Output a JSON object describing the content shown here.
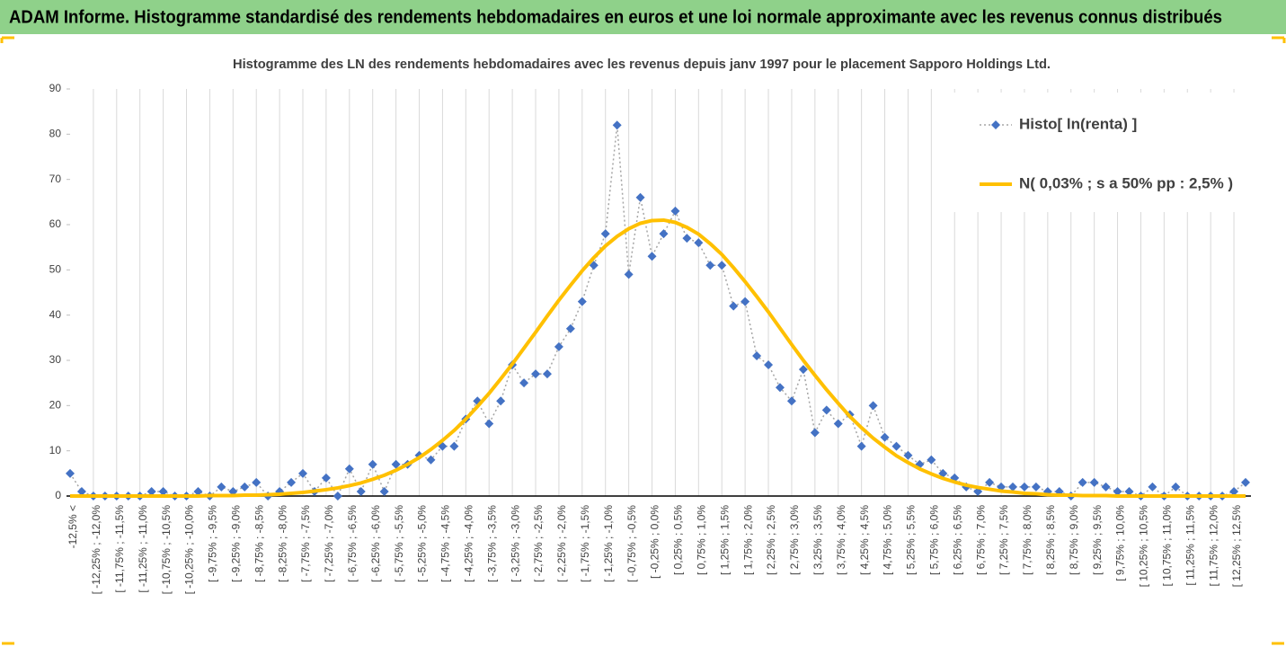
{
  "header": {
    "title": "ADAM Informe. Histogramme standardisé des rendements hebdomadaires en euros et une loi normale approximante avec les revenus connus distribués"
  },
  "chart_data": {
    "type": "line",
    "title": "Histogramme  des LN des rendements hebdomadaires avec les revenus depuis janv 1997 pour le placement Sapporo Holdings Ltd.",
    "categories": [
      "-12,5% <",
      null,
      "[ -12,25% ; -12,0%",
      null,
      "[ -11,75% ; -11,5%",
      null,
      "[ -11,25% ; -11,0%",
      null,
      "[ -10,75% ; -10,5%",
      null,
      "[ -10,25% ; -10,0%",
      null,
      "[ -9,75% ; -9,5%",
      null,
      "[ -9,25% ; -9,0%",
      null,
      "[ -8,75% ; -8,5%",
      null,
      "[ -8,25% ; -8,0%",
      null,
      "[ -7,75% ; -7,5%",
      null,
      "[ -7,25% ; -7,0%",
      null,
      "[ -6,75% ; -6,5%",
      null,
      "[ -6,25% ; -6,0%",
      null,
      "[ -5,75% ; -5,5%",
      null,
      "[ -5,25% ; -5,0%",
      null,
      "[ -4,75% ; -4,5%",
      null,
      "[ -4,25% ; -4,0%",
      null,
      "[ -3,75% ; -3,5%",
      null,
      "[ -3,25% ; -3,0%",
      null,
      "[ -2,75% ; -2,5%",
      null,
      "[ -2,25% ; -2,0%",
      null,
      "[ -1,75% ; -1,5%",
      null,
      "[ -1,25% ; -1,0%",
      null,
      "[ -0,75% ; -0,5%",
      null,
      "[ -0,25% ; 0,0%",
      null,
      "[ 0,25% ; 0,5%",
      null,
      "[ 0,75% ; 1,0%",
      null,
      "[ 1,25% ; 1,5%",
      null,
      "[ 1,75% ; 2,0%",
      null,
      "[ 2,25% ; 2,5%",
      null,
      "[ 2,75% ; 3,0%",
      null,
      "[ 3,25% ; 3,5%",
      null,
      "[ 3,75% ; 4,0%",
      null,
      "[ 4,25% ; 4,5%",
      null,
      "[ 4,75% ; 5,0%",
      null,
      "[ 5,25% ; 5,5%",
      null,
      "[ 5,75% ; 6,0%",
      null,
      "[ 6,25% ; 6,5%",
      null,
      "[ 6,75% ; 7,0%",
      null,
      "[ 7,25% ; 7,5%",
      null,
      "[ 7,75% ; 8,0%",
      null,
      "[ 8,25% ; 8,5%",
      null,
      "[ 8,75% ; 9,0%",
      null,
      "[ 9,25% ; 9,5%",
      null,
      "[ 9,75% ; 10,0%",
      null,
      "[ 10,25% ; 10,5%",
      null,
      "[ 10,75% ; 11,0%",
      null,
      "[ 11,25% ; 11,5%",
      null,
      "[ 11,75% ; 12,0%",
      null,
      "[ 12,25% ; 12,5%",
      null
    ],
    "series": [
      {
        "name": "Histo[ ln(renta) ]",
        "color": "#4472c4",
        "line_color": "#a5a5a5",
        "marker": "diamond",
        "dashed": true,
        "values": [
          5,
          1,
          0,
          0,
          0,
          0,
          0,
          1,
          1,
          0,
          0,
          1,
          0,
          2,
          1,
          2,
          3,
          0,
          1,
          3,
          5,
          1,
          4,
          0,
          6,
          1,
          7,
          1,
          7,
          7,
          9,
          8,
          11,
          11,
          17,
          21,
          16,
          21,
          29,
          25,
          27,
          27,
          33,
          37,
          43,
          51,
          58,
          82,
          49,
          66,
          53,
          58,
          63,
          57,
          56,
          51,
          51,
          42,
          43,
          31,
          29,
          24,
          21,
          28,
          14,
          19,
          16,
          18,
          11,
          20,
          13,
          11,
          9,
          7,
          8,
          5,
          4,
          2,
          1,
          3,
          2,
          2,
          2,
          2,
          1,
          1,
          0,
          3,
          3,
          2,
          1,
          1,
          0,
          2,
          0,
          2,
          0,
          0,
          0,
          0,
          1,
          3
        ]
      },
      {
        "name": "N( 0,03% ; s a 50% pp : 2,5% )",
        "color": "#ffc000",
        "marker": null,
        "dashed": false,
        "values": [
          0,
          0,
          0,
          0,
          0,
          0,
          0,
          0,
          0,
          0,
          0,
          0,
          0.1,
          0.1,
          0.1,
          0.2,
          0.2,
          0.3,
          0.4,
          0.6,
          0.8,
          1.1,
          1.4,
          1.8,
          2.3,
          2.9,
          3.7,
          4.6,
          5.7,
          7.0,
          8.5,
          10.3,
          12.3,
          14.5,
          17.0,
          19.8,
          22.7,
          25.9,
          29.2,
          32.7,
          36.2,
          39.8,
          43.3,
          46.6,
          49.8,
          52.7,
          55.3,
          57.4,
          59.1,
          60.3,
          60.9,
          61.0,
          60.5,
          59.4,
          57.9,
          55.8,
          53.4,
          50.5,
          47.4,
          44.1,
          40.7,
          37.1,
          33.5,
          30.0,
          26.7,
          23.5,
          20.5,
          17.6,
          15.1,
          12.8,
          10.8,
          8.9,
          7.4,
          6.0,
          4.9,
          3.9,
          3.1,
          2.4,
          1.9,
          1.5,
          1.1,
          0.9,
          0.6,
          0.5,
          0.3,
          0.2,
          0.2,
          0.1,
          0.1,
          0.1,
          0,
          0,
          0,
          0,
          0,
          0,
          0,
          0,
          0,
          0,
          0,
          0
        ]
      }
    ],
    "ylim": [
      0,
      90
    ],
    "yticks": [
      0,
      10,
      20,
      30,
      40,
      50,
      60,
      70,
      80,
      90
    ],
    "grid": "vertical",
    "legend": "top-right"
  }
}
